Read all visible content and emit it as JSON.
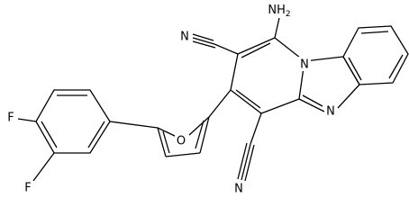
{
  "atoms": [
    {
      "label": "NH",
      "subscript": "2"
    },
    {
      "label": "N"
    },
    {
      "label": "N"
    },
    {
      "label": "N"
    },
    {
      "label": "N"
    },
    {
      "label": "O"
    },
    {
      "label": "F"
    },
    {
      "label": "F"
    }
  ]
}
